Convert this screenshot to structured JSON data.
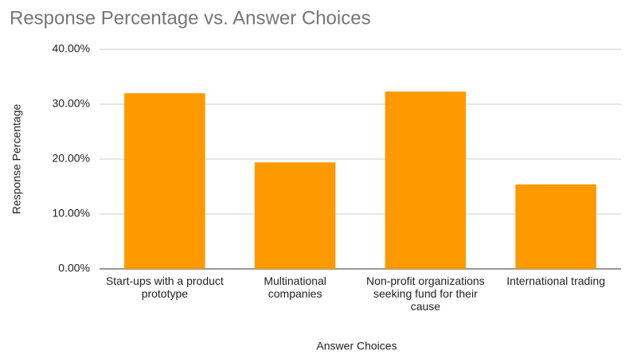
{
  "chart_data": {
    "type": "bar",
    "title": "Response Percentage vs. Answer Choices",
    "x_label": "Answer Choices",
    "y_label": "Response Percentage",
    "categories": [
      "Start-ups with a product prototype",
      "Multinational companies",
      "Non-profit organizations seeking fund for their cause",
      "International trading"
    ],
    "values": [
      32.0,
      19.4,
      32.3,
      15.4
    ],
    "color": "#ff9900",
    "ylim": [
      0,
      40
    ],
    "yticks": [
      {
        "value": 0,
        "label": "0.00%"
      },
      {
        "value": 10,
        "label": "10.00%"
      },
      {
        "value": 20,
        "label": "20.00%"
      },
      {
        "value": 30,
        "label": "30.00%"
      },
      {
        "value": 40,
        "label": "40.00%"
      }
    ],
    "grid": true
  }
}
